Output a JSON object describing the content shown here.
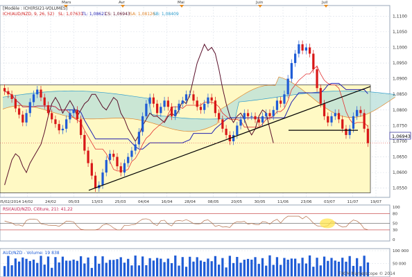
{
  "header": {
    "model_text": "[Modèle : ICH(RSI21-VOLUMES]",
    "ichimoku_prefix": "ICH(AUD/NZD, 9, 26, 52)",
    "sl": "SL: 1,07631",
    "tl": "TL: 1,08621",
    "cs": "CS: 1,06943",
    "sa": "SA: 1,08126",
    "sb": "SB: 1,08409"
  },
  "price_label": "1,06943",
  "rsi_label": "RSI(AUD/NZD, Clôture, 21): 41,22",
  "volume_label": "AUD/NZD - Volume: 19 838",
  "footer": "FXCM Marketscope © 2014",
  "colors": {
    "up": "#1f5cd6",
    "down": "#d81818",
    "kumo_bear": "#f3c28d",
    "kumo_bull": "#b8dfd9",
    "zone": "#fff9c4",
    "kijun": "#2020b0",
    "tenkan": "#e23030",
    "chikou": "#5a0f2a",
    "rsi": "#b3704a"
  },
  "chart_data": [
    {
      "type": "candlestick",
      "title": "",
      "months": [
        "Mars",
        "Avr",
        "Mai",
        "Juin",
        "Juil"
      ],
      "xticks": [
        "05/02/2014",
        "14/02",
        "24/02",
        "05/03",
        "13/03",
        "25/03",
        "04/04",
        "16/04",
        "28/04",
        "08/05",
        "20/05",
        "30/05",
        "11/06",
        "23/06",
        "03/07",
        "11/07",
        "19/07"
      ],
      "yticks": [
        "1,1100",
        "1,1050",
        "1,1000",
        "1,0950",
        "1,0900",
        "1,0850",
        "1,0800",
        "1,0750",
        "1,0700",
        "1,0650",
        "1,0600",
        "1,0550"
      ],
      "ylim": [
        1.0525,
        1.1125
      ],
      "last_price": 1.06943,
      "close": [
        1.086,
        1.085,
        1.0835,
        1.0805,
        1.0785,
        1.076,
        1.079,
        1.0825,
        1.085,
        1.0865,
        1.084,
        1.0815,
        1.079,
        1.077,
        1.0755,
        1.0735,
        1.074,
        1.077,
        1.079,
        1.08,
        1.077,
        1.072,
        1.067,
        1.063,
        1.059,
        1.055,
        1.056,
        1.06,
        1.064,
        1.066,
        1.065,
        1.062,
        1.06,
        1.063,
        1.065,
        1.067,
        1.069,
        1.073,
        1.078,
        1.082,
        1.084,
        1.082,
        1.079,
        1.081,
        1.083,
        1.081,
        1.078,
        1.08,
        1.082,
        1.083,
        1.085,
        1.085,
        1.083,
        1.081,
        1.08,
        1.082,
        1.084,
        1.083,
        1.079,
        1.077,
        1.074,
        1.072,
        1.07,
        1.072,
        1.075,
        1.077,
        1.079,
        1.078,
        1.078,
        1.077,
        1.076,
        1.078,
        1.079,
        1.078,
        1.08,
        1.083,
        1.082,
        1.085,
        1.09,
        1.095,
        1.098,
        1.101,
        1.099,
        1.1,
        1.098,
        1.093,
        1.087,
        1.082,
        1.078,
        1.076,
        1.078,
        1.079,
        1.077,
        1.074,
        1.072,
        1.074,
        1.078,
        1.08,
        1.079,
        1.074,
        1.0694
      ],
      "ichimoku": {
        "tenkan": 1.07631,
        "kijun": 1.08621,
        "senkou_a": 1.08126,
        "senkou_b": 1.08409,
        "chikou": 1.06943
      },
      "resistance_zone": [
        1.0535,
        1.088
      ],
      "trendline": {
        "from": 1.0543,
        "to": 1.0875
      },
      "support_line": 1.0735
    },
    {
      "type": "line",
      "name": "RSI",
      "yticks": [
        "100",
        "80",
        "50",
        "30",
        "0"
      ],
      "ylim": [
        0,
        100
      ],
      "levels": [
        80,
        50,
        30
      ],
      "last": 41.22
    },
    {
      "type": "bar",
      "name": "Volume",
      "yticks": [
        "100 000",
        "50 000"
      ],
      "ylim": [
        0,
        100000
      ],
      "last": 19838
    }
  ]
}
